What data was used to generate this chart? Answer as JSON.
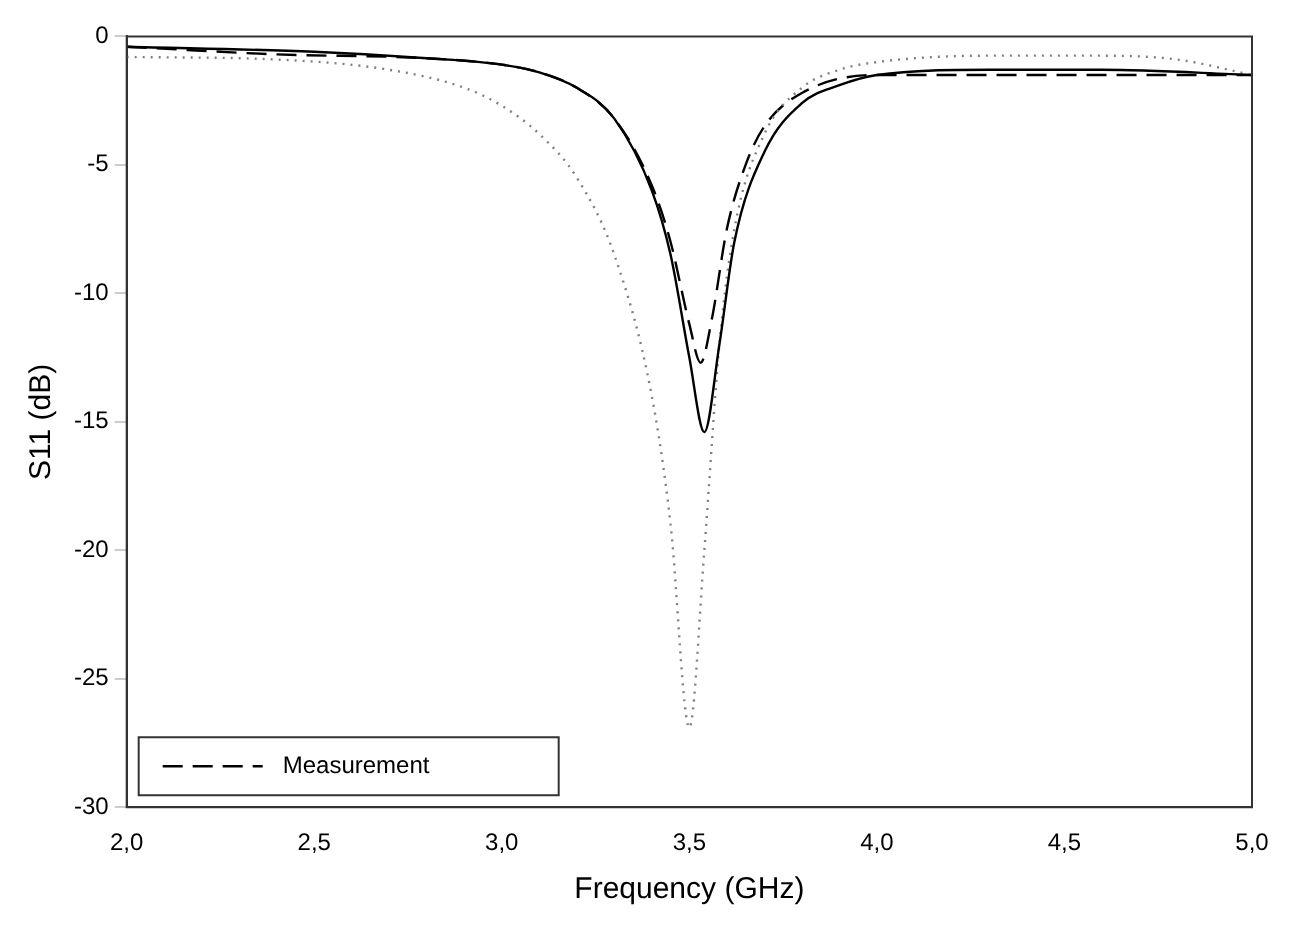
{
  "chart_data": {
    "type": "line",
    "xlabel": "Frequency (GHz)",
    "ylabel": "S11 (dB)",
    "xlim": [
      2,
      5
    ],
    "ylim": [
      -30,
      0
    ],
    "xticks": [
      {
        "value": 2,
        "label": "2,0"
      },
      {
        "value": 2.5,
        "label": "2,5"
      },
      {
        "value": 3,
        "label": "3,0"
      },
      {
        "value": 3.5,
        "label": "3,5"
      },
      {
        "value": 4,
        "label": "4,0"
      },
      {
        "value": 4.5,
        "label": "4,5"
      },
      {
        "value": 5,
        "label": "5,0"
      }
    ],
    "yticks": [
      -30,
      -25,
      -20,
      -15,
      -10,
      -5,
      0
    ],
    "grid": false,
    "legend": "bottom left",
    "marker": "none",
    "series": [
      {
        "color": "#000000",
        "line_style": "solid",
        "x": [
          2.0,
          2.5,
          2.8,
          3.0,
          3.1,
          3.2,
          3.3,
          3.4,
          3.45,
          3.5,
          3.54,
          3.58,
          3.62,
          3.7,
          3.8,
          3.9,
          4.0,
          4.3,
          4.6,
          5.0
        ],
        "values": [
          -0.4,
          -0.6,
          -0.85,
          -1.1,
          -1.4,
          -2.0,
          -3.2,
          -6.0,
          -8.5,
          -12.5,
          -15.4,
          -12,
          -8,
          -4.5,
          -2.6,
          -1.9,
          -1.5,
          -1.3,
          -1.3,
          -1.5
        ]
      },
      {
        "color": "#808080",
        "line_style": "dotted",
        "x": [
          2.0,
          2.4,
          2.7,
          2.9,
          3.0,
          3.1,
          3.2,
          3.3,
          3.4,
          3.45,
          3.5,
          3.54,
          3.58,
          3.62,
          3.7,
          3.8,
          3.9,
          4.0,
          4.3,
          4.6,
          4.8,
          5.0
        ],
        "values": [
          -0.8,
          -0.9,
          -1.3,
          -2.0,
          -2.7,
          -3.8,
          -5.5,
          -8.5,
          -14,
          -19,
          -26.9,
          -20,
          -12,
          -7.5,
          -3.8,
          -2.0,
          -1.3,
          -1.0,
          -0.75,
          -0.75,
          -0.9,
          -1.5
        ]
      },
      {
        "name": "Measurement",
        "color": "#000000",
        "line_style": "dashed",
        "x": [
          2.0,
          2.4,
          2.8,
          3.0,
          3.1,
          3.2,
          3.3,
          3.4,
          3.45,
          3.5,
          3.53,
          3.56,
          3.6,
          3.65,
          3.7,
          3.8,
          4.0,
          4.5,
          5.0
        ],
        "values": [
          -0.4,
          -0.7,
          -0.85,
          -1.1,
          -1.4,
          -2.0,
          -3.2,
          -5.8,
          -8.0,
          -11.2,
          -12.7,
          -11,
          -7.5,
          -5,
          -3.5,
          -2.2,
          -1.5,
          -1.5,
          -1.5
        ]
      }
    ]
  }
}
